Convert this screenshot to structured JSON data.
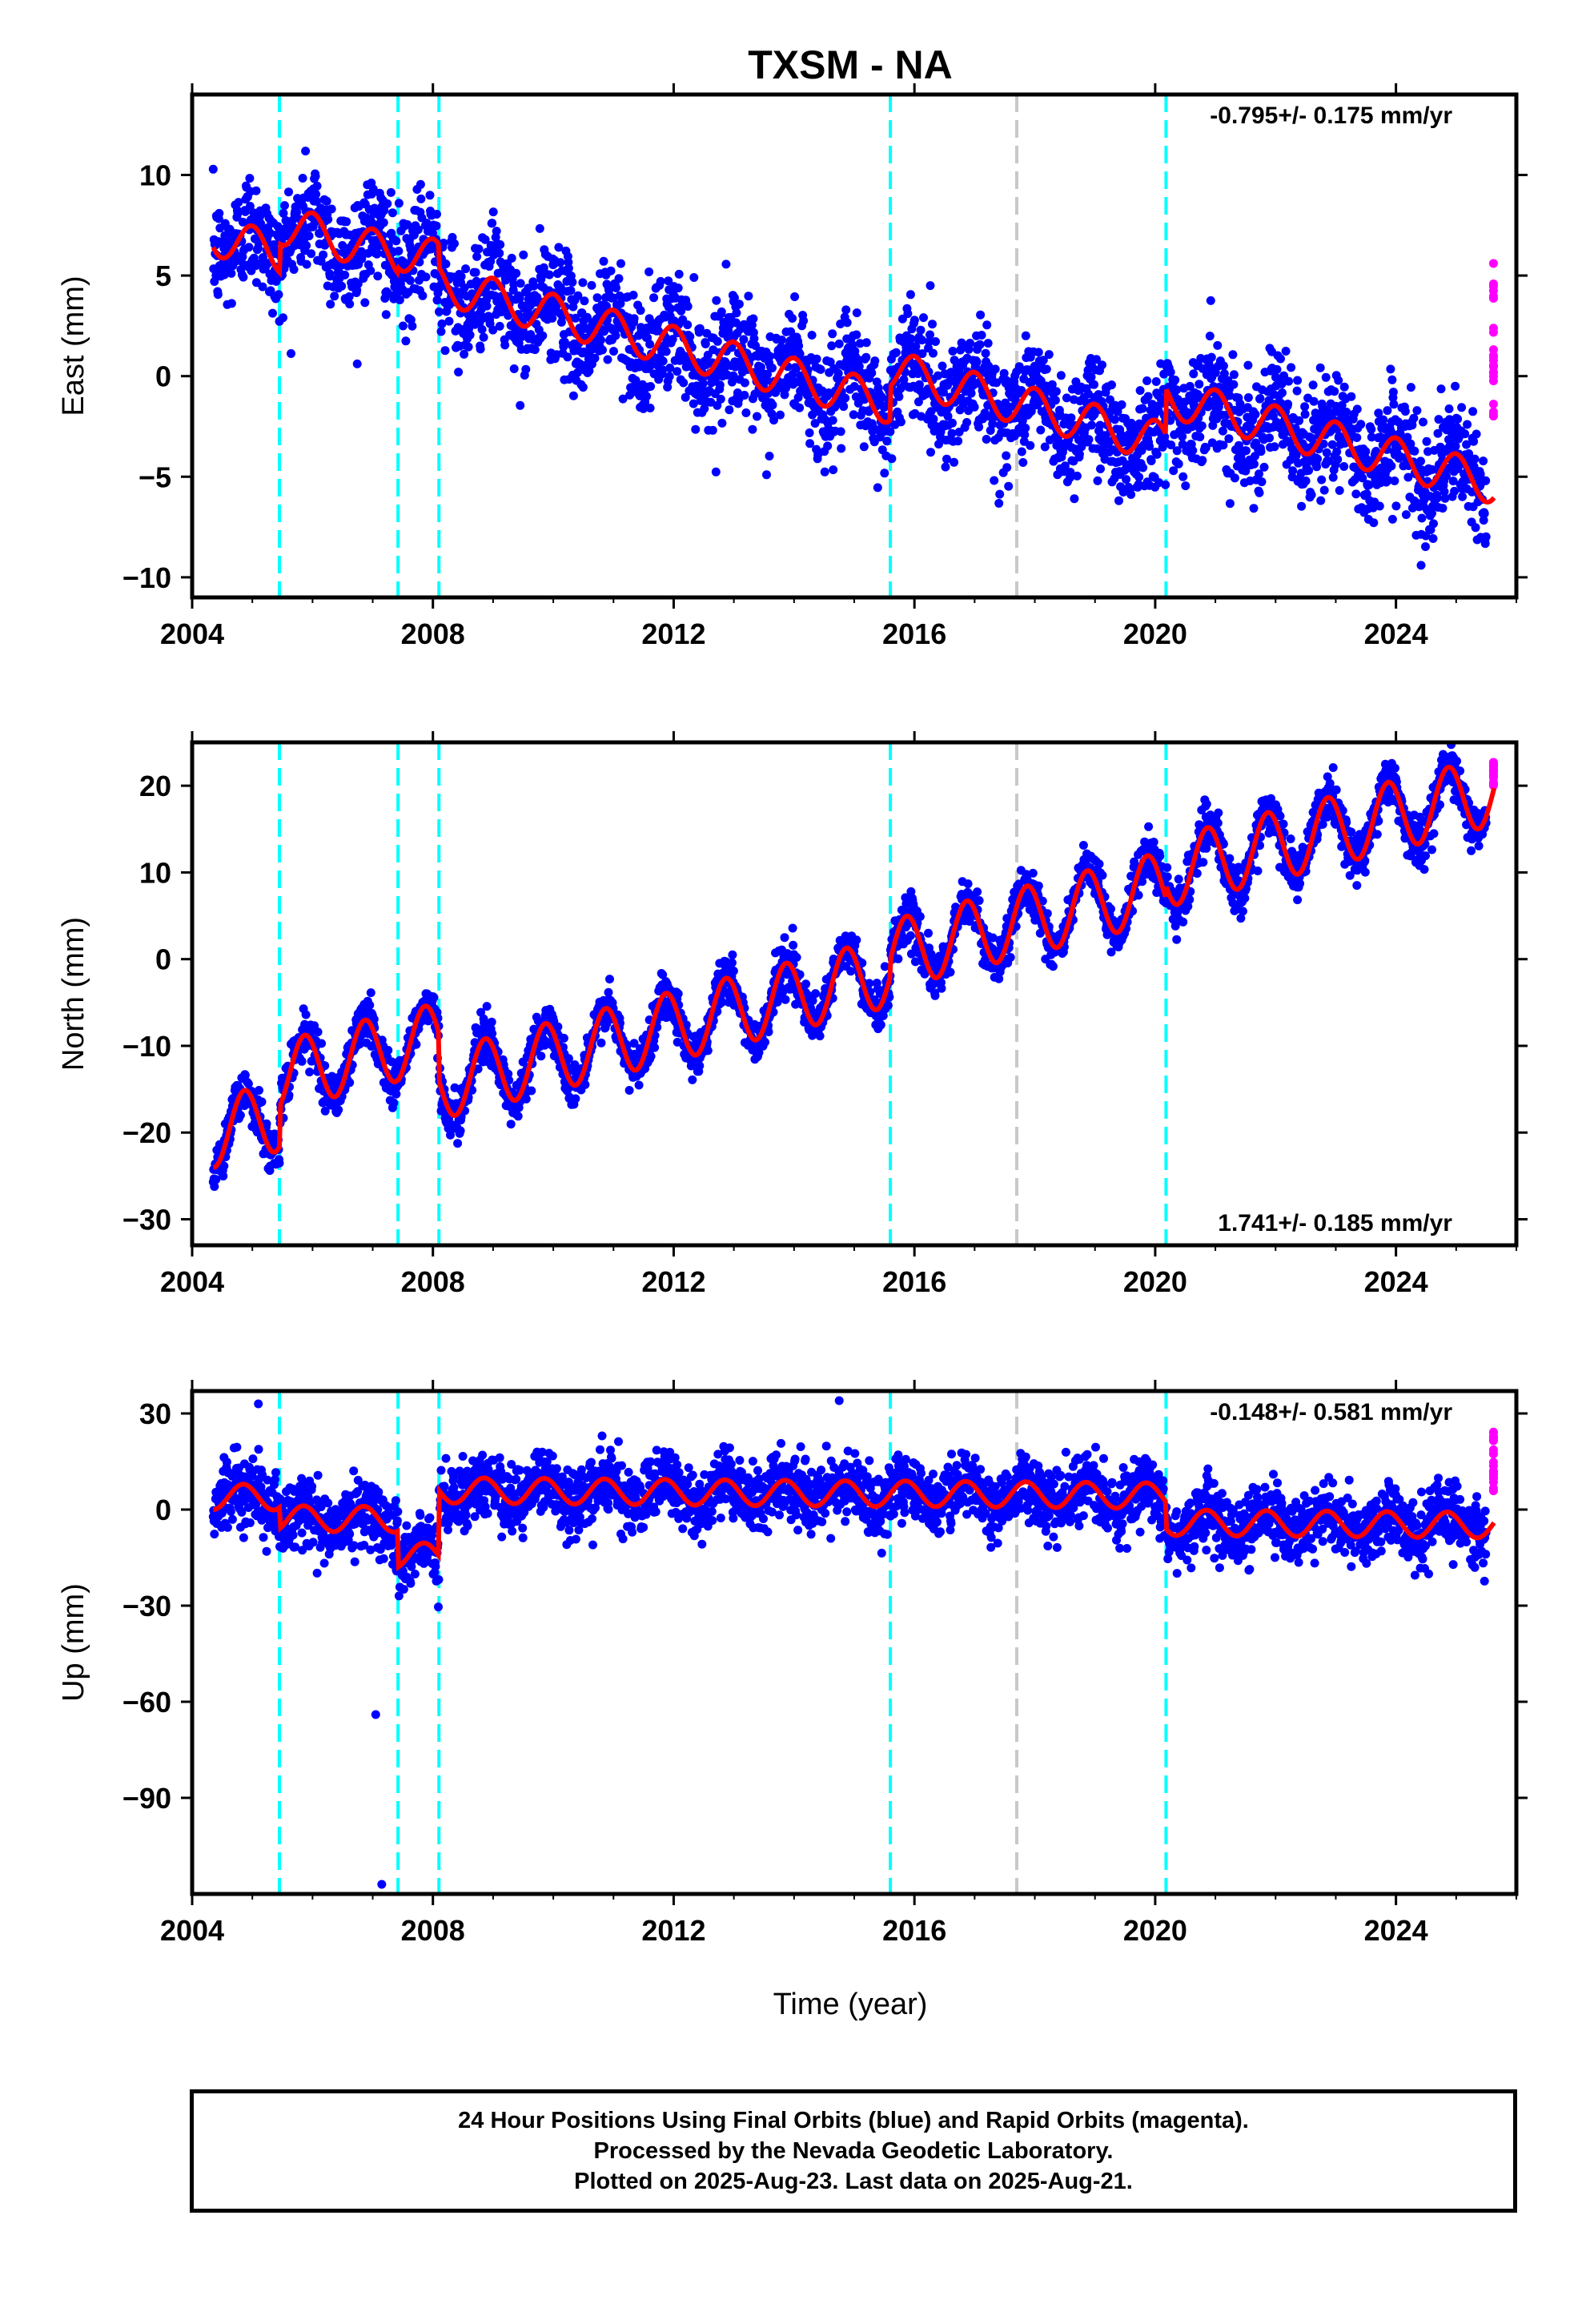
{
  "chart_data": {
    "type": "scatter",
    "title": "TXSM - NA",
    "xlabel": "Time (year)",
    "xlim": [
      2004.0,
      2026.0
    ],
    "x_ticks": [
      2004,
      2008,
      2012,
      2016,
      2020,
      2024
    ],
    "x_tick_labels": [
      "2004",
      "2008",
      "2012",
      "2016",
      "2020",
      "2024"
    ],
    "equipment_change_epochs": [
      2005.45,
      2007.42,
      2008.1,
      2015.6,
      2020.18
    ],
    "other_event_epochs": [
      2017.7
    ],
    "colors": {
      "final": "#0000ff",
      "rapid": "#ff00ff",
      "model": "#ff0000",
      "equipment": "#00ffff",
      "other_event": "#c8c8c8"
    },
    "data_start": 2004.35,
    "rapid_start": 2025.5,
    "data_end": 2025.63,
    "panels": [
      {
        "name": "east",
        "ylabel": "East (mm)",
        "ylim": [
          -11,
          14
        ],
        "y_ticks": [
          -10,
          -5,
          0,
          5,
          10
        ],
        "y_tick_labels": [
          "−10",
          "−5",
          "0",
          "5",
          "10"
        ],
        "rate": "-0.795+/- 0.175 mm/yr",
        "rate_position": "top-right",
        "model_segments": [
          {
            "start": 2004.35,
            "end": 2005.45,
            "value_at_start": 6.4,
            "rate": -0.795,
            "amplitude": 1.0,
            "phase": 0.75
          },
          {
            "start": 2005.45,
            "end": 2007.42,
            "value_at_start": 6.6,
            "rate": -0.795,
            "amplitude": 1.0,
            "phase": 0.75
          },
          {
            "start": 2007.42,
            "end": 2008.1,
            "value_at_start": 5.4,
            "rate": -0.795,
            "amplitude": 1.0,
            "phase": 0.75
          },
          {
            "start": 2008.1,
            "end": 2015.6,
            "value_at_start": 5.4,
            "rate": -0.795,
            "amplitude": 1.0,
            "phase": 0.75
          },
          {
            "start": 2015.6,
            "end": 2020.18,
            "value_at_start": -0.5,
            "rate": -0.795,
            "amplitude": 1.0,
            "phase": 0.75
          },
          {
            "start": 2020.18,
            "end": 2025.63,
            "value_at_start": -0.6,
            "rate": -0.795,
            "amplitude": 1.0,
            "phase": 0.75
          }
        ],
        "scatter_sd": 1.4,
        "rapid_range": [
          -2,
          6
        ]
      },
      {
        "name": "north",
        "ylabel": "North (mm)",
        "ylim": [
          -33,
          25
        ],
        "y_ticks": [
          -30,
          -20,
          -10,
          0,
          10,
          20
        ],
        "y_tick_labels": [
          "−30",
          "−20",
          "−10",
          "0",
          "10",
          "20"
        ],
        "rate": "1.741+/- 0.185 mm/yr",
        "rate_position": "bottom-right",
        "model_segments": [
          {
            "start": 2004.35,
            "end": 2005.45,
            "value_at_start": -24.0,
            "rate": 1.741,
            "amplitude": 4.0,
            "phase": 0.62
          },
          {
            "start": 2005.45,
            "end": 2007.42,
            "value_at_start": -17.0,
            "rate": 1.741,
            "amplitude": 4.0,
            "phase": 0.62
          },
          {
            "start": 2007.42,
            "end": 2008.1,
            "value_at_start": -14.0,
            "rate": 1.741,
            "amplitude": 4.0,
            "phase": 0.62
          },
          {
            "start": 2008.1,
            "end": 2015.6,
            "value_at_start": -14.0,
            "rate": 1.741,
            "amplitude": 4.0,
            "phase": 0.62
          },
          {
            "start": 2015.6,
            "end": 2020.18,
            "value_at_start": 0.0,
            "rate": 1.741,
            "amplitude": 4.0,
            "phase": 0.62
          },
          {
            "start": 2020.18,
            "end": 2025.63,
            "value_at_start": 8.5,
            "rate": 1.741,
            "amplitude": 4.0,
            "phase": 0.62
          }
        ],
        "scatter_sd": 1.3,
        "rapid_range": [
          20,
          23
        ]
      },
      {
        "name": "up",
        "ylabel": "Up (mm)",
        "ylim": [
          -120,
          37
        ],
        "y_ticks": [
          -90,
          -60,
          -30,
          0,
          30
        ],
        "y_tick_labels": [
          "−90",
          "−60",
          "−30",
          "0",
          "30"
        ],
        "rate": "-0.148+/- 0.581 mm/yr",
        "rate_position": "top-right",
        "model_segments": [
          {
            "start": 2004.35,
            "end": 2005.45,
            "value_at_start": 0.0,
            "rate": -0.148,
            "amplitude": 4.0,
            "phase": 0.6
          },
          {
            "start": 2005.45,
            "end": 2007.42,
            "value_at_start": -6.0,
            "rate": -0.148,
            "amplitude": 4.0,
            "phase": 0.6
          },
          {
            "start": 2007.42,
            "end": 2008.1,
            "value_at_start": -18.0,
            "rate": -0.148,
            "amplitude": 4.0,
            "phase": 0.6
          },
          {
            "start": 2008.1,
            "end": 2015.6,
            "value_at_start": 6.0,
            "rate": -0.148,
            "amplitude": 4.0,
            "phase": 0.6
          },
          {
            "start": 2015.6,
            "end": 2020.18,
            "value_at_start": 5.0,
            "rate": -0.148,
            "amplitude": 4.0,
            "phase": 0.6
          },
          {
            "start": 2020.18,
            "end": 2025.63,
            "value_at_start": -6.0,
            "rate": -0.148,
            "amplitude": 4.0,
            "phase": 0.6
          }
        ],
        "scatter_sd": 5.0,
        "rapid_range": [
          5,
          27
        ],
        "outliers": [
          {
            "x": 2007.05,
            "y": -64
          },
          {
            "x": 2007.15,
            "y": -117
          },
          {
            "x": 2014.75,
            "y": 34
          },
          {
            "x": 2005.1,
            "y": 33
          }
        ]
      }
    ]
  },
  "footer": {
    "line1": "24 Hour Positions Using Final Orbits (blue) and Rapid Orbits (magenta).",
    "line2": "Processed by the Nevada Geodetic Laboratory.",
    "line3": "Plotted on 2025-Aug-23. Last data on 2025-Aug-21."
  }
}
